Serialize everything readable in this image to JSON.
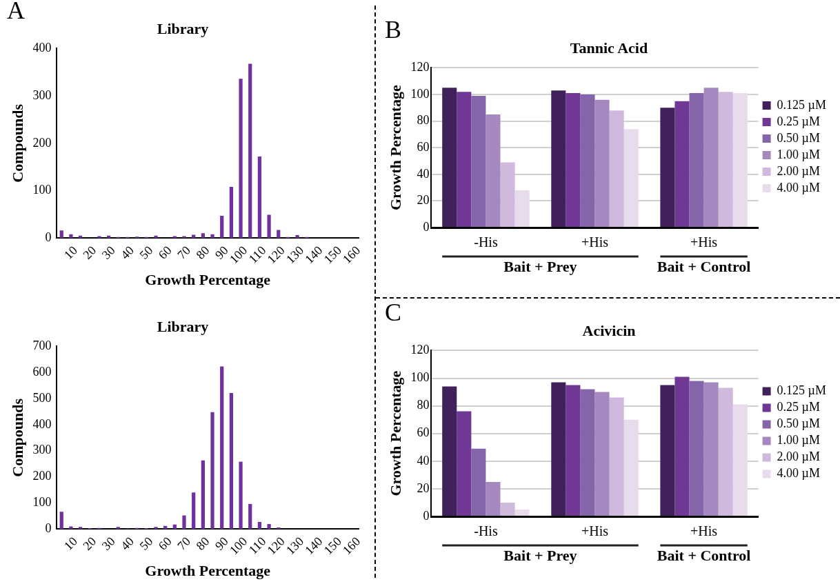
{
  "chart_data": [
    {
      "type": "histogram",
      "title": "Library",
      "xlabel": "Growth Percentage",
      "ylabel": "Compounds",
      "annotations": [
        "A"
      ],
      "bins": [
        0,
        5,
        10,
        15,
        20,
        25,
        30,
        35,
        40,
        45,
        50,
        55,
        60,
        65,
        70,
        75,
        80,
        85,
        90,
        95,
        100,
        105,
        110,
        115,
        120,
        125,
        130,
        135,
        140,
        145,
        150,
        155,
        160
      ],
      "values": [
        16,
        8,
        5,
        0,
        4,
        5,
        2,
        2,
        3,
        2,
        5,
        0,
        4,
        4,
        7,
        10,
        8,
        47,
        108,
        336,
        368,
        172,
        49,
        17,
        2,
        6,
        2,
        0,
        0,
        0,
        0,
        0
      ],
      "color": "#7030a0",
      "xlim": [
        0,
        160
      ],
      "xticks": [
        10,
        20,
        30,
        40,
        50,
        60,
        70,
        80,
        90,
        100,
        110,
        120,
        130,
        140,
        150,
        160
      ],
      "ylim": [
        0,
        400
      ],
      "yticks": [
        0,
        100,
        200,
        300,
        400
      ],
      "grid": false
    },
    {
      "type": "histogram",
      "title": "Library",
      "xlabel": "Growth Percentage",
      "ylabel": "Compounds",
      "bins": [
        0,
        5,
        10,
        15,
        20,
        25,
        30,
        35,
        40,
        45,
        50,
        55,
        60,
        65,
        70,
        75,
        80,
        85,
        90,
        95,
        100,
        105,
        110,
        115,
        120,
        125,
        130,
        135,
        140,
        145,
        150,
        155,
        160
      ],
      "values": [
        66,
        10,
        8,
        3,
        4,
        0,
        8,
        2,
        4,
        3,
        8,
        12,
        17,
        52,
        140,
        263,
        448,
        623,
        521,
        258,
        96,
        27,
        19,
        6,
        0,
        0,
        0,
        0,
        0,
        0,
        0,
        0
      ],
      "color": "#7030a0",
      "xlim": [
        0,
        160
      ],
      "xticks": [
        10,
        20,
        30,
        40,
        50,
        60,
        70,
        80,
        90,
        100,
        110,
        120,
        130,
        140,
        150,
        160
      ],
      "ylim": [
        0,
        700
      ],
      "yticks": [
        0,
        100,
        200,
        300,
        400,
        500,
        600,
        700
      ],
      "grid": false
    },
    {
      "type": "bar",
      "title": "Tannic Acid",
      "ylabel": "Growth Percentage",
      "annotations": [
        "B",
        "Bait + Prey",
        "Bait + Control"
      ],
      "categories": [
        "-His",
        "+His",
        "+His"
      ],
      "series": [
        {
          "name": "0.125 µM",
          "color": "#40215c",
          "values": [
            105,
            103,
            90
          ]
        },
        {
          "name": "0.25 µM",
          "color": "#6f3895",
          "values": [
            102,
            101,
            95
          ]
        },
        {
          "name": "0.50 µM",
          "color": "#8565aa",
          "values": [
            99,
            100,
            101
          ]
        },
        {
          "name": "1.00 µM",
          "color": "#a588bf",
          "values": [
            85,
            96,
            105
          ]
        },
        {
          "name": "2.00 µM",
          "color": "#cfbadd",
          "values": [
            49,
            88,
            102
          ]
        },
        {
          "name": "4.00 µM",
          "color": "#e8dcec",
          "values": [
            28,
            74,
            101
          ]
        }
      ],
      "ylim": [
        0,
        120
      ],
      "yticks": [
        0,
        20,
        40,
        60,
        80,
        100,
        120
      ],
      "grid": "y",
      "legend": "right"
    },
    {
      "type": "bar",
      "title": "Acivicin",
      "ylabel": "Growth Percentage",
      "annotations": [
        "C",
        "Bait + Prey",
        "Bait + Control"
      ],
      "categories": [
        "-His",
        "+His",
        "+His"
      ],
      "series": [
        {
          "name": "0.125 µM",
          "color": "#40215c",
          "values": [
            94,
            97,
            95
          ]
        },
        {
          "name": "0.25 µM",
          "color": "#6f3895",
          "values": [
            76,
            95,
            101
          ]
        },
        {
          "name": "0.50 µM",
          "color": "#8565aa",
          "values": [
            49,
            92,
            98
          ]
        },
        {
          "name": "1.00 µM",
          "color": "#a588bf",
          "values": [
            25,
            90,
            97
          ]
        },
        {
          "name": "2.00 µM",
          "color": "#cfbadd",
          "values": [
            10,
            86,
            93
          ]
        },
        {
          "name": "4.00 µM",
          "color": "#e8dcec",
          "values": [
            5,
            70,
            81
          ]
        }
      ],
      "ylim": [
        0,
        120
      ],
      "yticks": [
        0,
        20,
        40,
        60,
        80,
        100,
        120
      ],
      "grid": "y",
      "legend": "right"
    }
  ]
}
